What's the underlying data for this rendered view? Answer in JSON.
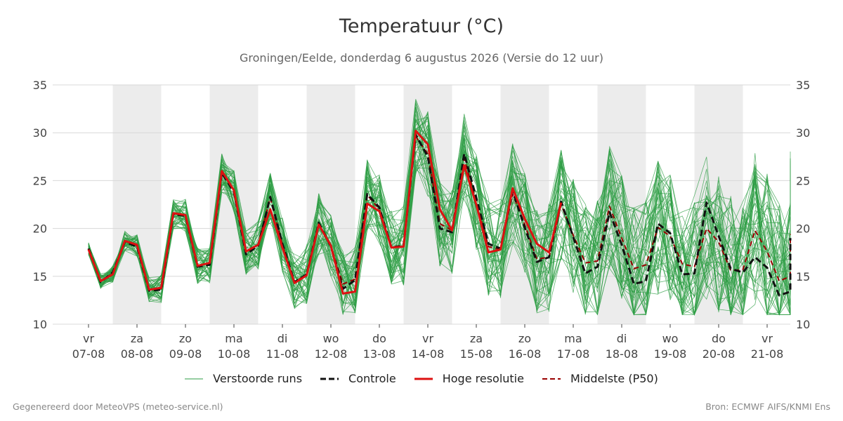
{
  "title": "Temperatuur (°C)",
  "subtitle": "Groningen/Eelde, donderdag  6 augustus 2026 (Versie do 12 uur)",
  "footer": {
    "left": "Gegenereerd door MeteoVPS (meteo-service.nl)",
    "right": "Bron: ECMWF AIFS/KNMI Ens"
  },
  "colors": {
    "members": "#2e9e44",
    "control": "#111111",
    "hires": "#dd1111",
    "median": "#990000",
    "weekend_band": "#ececec",
    "grid": "#d8d8d8"
  },
  "chart_data": {
    "type": "line",
    "ylim": [
      10,
      35
    ],
    "yticks": [
      10,
      15,
      20,
      25,
      30,
      35
    ],
    "x_start": "2026-08-06T12:00",
    "x_end": "2026-08-21T12:00",
    "x_step_hours": 6,
    "ticks": [
      {
        "day": "vr",
        "date": "07-08"
      },
      {
        "day": "za",
        "date": "08-08"
      },
      {
        "day": "zo",
        "date": "09-08"
      },
      {
        "day": "ma",
        "date": "10-08"
      },
      {
        "day": "di",
        "date": "11-08"
      },
      {
        "day": "wo",
        "date": "12-08"
      },
      {
        "day": "do",
        "date": "13-08"
      },
      {
        "day": "vr",
        "date": "14-08"
      },
      {
        "day": "za",
        "date": "15-08"
      },
      {
        "day": "zo",
        "date": "16-08"
      },
      {
        "day": "ma",
        "date": "17-08"
      },
      {
        "day": "di",
        "date": "18-08"
      },
      {
        "day": "wo",
        "date": "19-08"
      },
      {
        "day": "do",
        "date": "20-08"
      },
      {
        "day": "vr",
        "date": "21-08"
      }
    ],
    "legend": [
      {
        "key": "members",
        "label": "Verstoorde runs"
      },
      {
        "key": "control",
        "label": "Controle"
      },
      {
        "key": "hires",
        "label": "Hoge resolutie"
      },
      {
        "key": "median",
        "label": "Middelste (P50)"
      }
    ],
    "series": [
      {
        "name": "Hoge resolutie",
        "values": [
          17.8,
          14.5,
          15.2,
          18.7,
          18.3,
          13.6,
          13.8,
          21.6,
          21.4,
          16.1,
          16.4,
          26.0,
          24.0,
          17.6,
          18.3,
          22.0,
          18.0,
          14.3,
          15.1,
          20.4,
          18.2,
          13.2,
          13.4,
          22.6,
          21.8,
          18.0,
          18.1,
          30.2,
          28.8,
          22.0,
          19.8,
          26.6,
          22.5,
          17.5,
          17.8,
          24.2,
          21.0,
          18.4,
          17.5,
          22.7
        ]
      },
      {
        "name": "Controle",
        "values": [
          17.9,
          14.4,
          15.4,
          18.6,
          18.1,
          13.5,
          13.6,
          21.5,
          21.3,
          16.0,
          16.2,
          25.8,
          23.8,
          17.3,
          18.2,
          23.3,
          18.4,
          14.4,
          15.2,
          20.6,
          18.1,
          13.7,
          14.6,
          23.6,
          22.2,
          18.0,
          18.2,
          29.8,
          27.5,
          20.0,
          19.6,
          27.8,
          23.2,
          18.4,
          17.9,
          23.9,
          20.1,
          16.5,
          17.0,
          22.8,
          19.1,
          15.3,
          16.0,
          21.7,
          18.3,
          14.2,
          14.5,
          20.5,
          19.5,
          15.2,
          15.3,
          22.7,
          19.2,
          15.8,
          15.4,
          17.0,
          15.9,
          13.0,
          13.4,
          19.0
        ]
      },
      {
        "name": "Middelste (P50)",
        "values": [
          17.9,
          14.5,
          15.3,
          18.7,
          18.2,
          13.6,
          13.7,
          21.5,
          21.4,
          16.1,
          16.3,
          25.9,
          23.9,
          17.5,
          18.3,
          23.2,
          18.3,
          14.4,
          15.2,
          20.5,
          18.2,
          14.2,
          14.7,
          23.5,
          22.0,
          18.1,
          18.2,
          29.6,
          27.8,
          20.5,
          19.8,
          27.3,
          22.8,
          18.1,
          17.8,
          23.6,
          20.4,
          16.8,
          17.0,
          22.5,
          19.3,
          16.4,
          16.6,
          22.3,
          19.0,
          15.8,
          16.2,
          20.1,
          19.2,
          16.3,
          16.0,
          20.0,
          18.6,
          15.6,
          15.7,
          19.8,
          17.6,
          14.5,
          15.0,
          19.4
        ]
      }
    ]
  }
}
